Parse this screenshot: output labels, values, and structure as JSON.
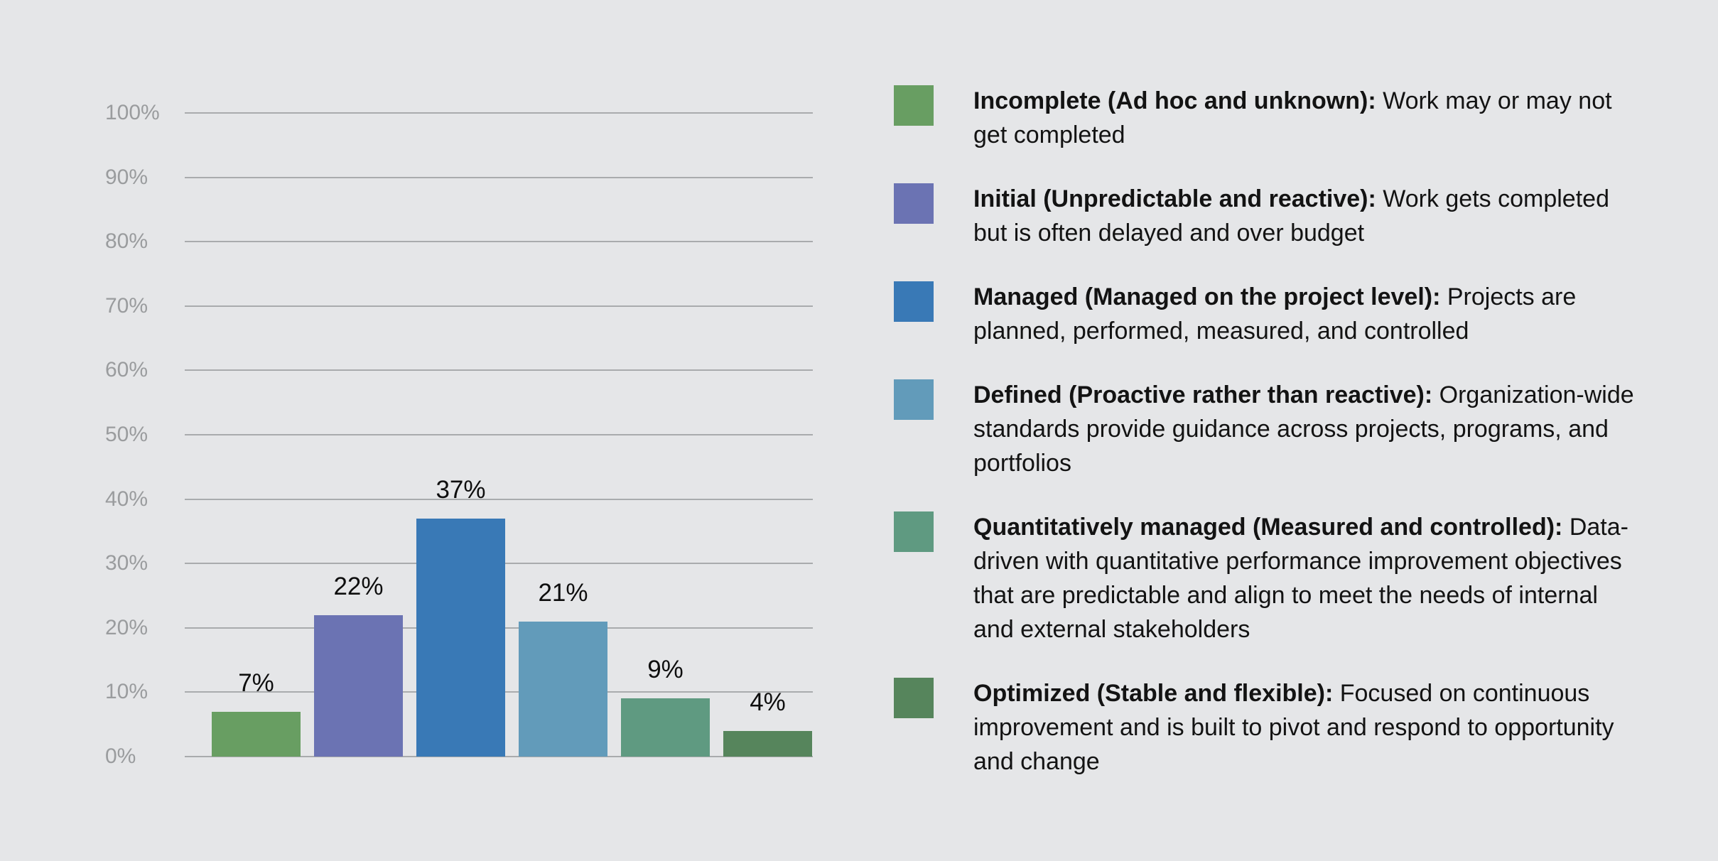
{
  "chart_data": {
    "type": "bar",
    "title": "",
    "xlabel": "",
    "ylabel": "",
    "categories": [
      "Incomplete (Ad hoc and unknown)",
      "Initial (Unpredictable and reactive)",
      "Managed (Managed on the project level)",
      "Defined (Proactive rather than reactive)",
      "Quantitatively managed (Measured and controlled)",
      "Optimized (Stable and flexible)"
    ],
    "values": [
      7,
      22,
      37,
      21,
      9,
      4
    ],
    "value_labels": [
      "7%",
      "22%",
      "37%",
      "21%",
      "9%",
      "4%"
    ],
    "bar_colors": [
      "#689e62",
      "#6b73b3",
      "#3979b6",
      "#629bba",
      "#5f9a81",
      "#56855c"
    ],
    "ylim": [
      0,
      100
    ],
    "y_ticks": [
      "100%",
      "90%",
      "80%",
      "70%",
      "60%",
      "50%",
      "40%",
      "30%",
      "20%",
      "10%",
      "0%"
    ],
    "grid": true,
    "legend_position": "right"
  },
  "legend": {
    "items": [
      {
        "color": "#689e62",
        "term": "Incomplete (Ad hoc and unknown):",
        "description": " Work may or may not get completed"
      },
      {
        "color": "#6b73b3",
        "term": "Initial (Unpredictable and reactive):",
        "description": " Work gets completed but is often delayed and over budget"
      },
      {
        "color": "#3979b6",
        "term": "Managed (Managed on the project level):",
        "description": " Projects are planned, performed, measured, and controlled"
      },
      {
        "color": "#629bba",
        "term": "Defined (Proactive rather than reactive):",
        "description": " Organization-wide standards provide guidance across projects, programs, and portfolios"
      },
      {
        "color": "#5f9a81",
        "term": "Quantitatively managed (Measured and controlled):",
        "description": " Data-driven with quantitative performance improvement objectives that are predictable and align to meet the needs of internal and external stakeholders"
      },
      {
        "color": "#56855c",
        "term": "Optimized (Stable and flexible):",
        "description": " Focused on continuous improvement and is built to pivot and respond to opportunity and change"
      }
    ]
  },
  "colors": {
    "background": "#e5e6e8",
    "gridline": "#a9abad",
    "tick_label": "#9a9c9e",
    "text": "#131313"
  }
}
